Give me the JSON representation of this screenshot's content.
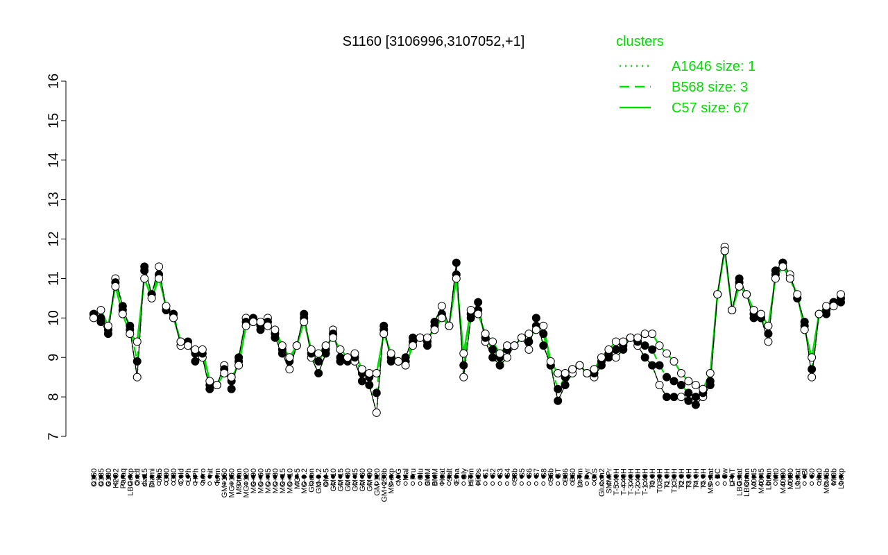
{
  "chart_data": {
    "type": "line",
    "title": "S1160 [3106996,3107052,+1]",
    "xlabel": "",
    "ylabel": "",
    "ylim": [
      7,
      16
    ],
    "yticks": [
      7,
      8,
      9,
      10,
      11,
      12,
      13,
      14,
      15,
      16
    ],
    "legend": {
      "title": "clusters",
      "placement": "top-right",
      "entries": [
        {
          "label": "A1646 size: 1",
          "style": "dotted"
        },
        {
          "label": "B568 size: 3",
          "style": "dashed"
        },
        {
          "label": "C57 size: 67",
          "style": "solid"
        }
      ]
    },
    "colors": {
      "line": "#00dd00",
      "axis": "#000000"
    },
    "x_tick_labels": [
      "G150",
      "G135",
      "G180",
      "H2O2",
      "Paraq",
      "LBGexp",
      "Oxctl",
      "dia15",
      "Diami",
      "dia5",
      "C90",
      "C30",
      "Cold",
      "LPh",
      "HPh",
      "aero",
      "nit",
      "ferm",
      "GM+150",
      "MG+150",
      "M9-tran",
      "MG+120",
      "MG+90",
      "MG+60",
      "MG+45",
      "MG+30",
      "MG+15",
      "MG+10",
      "MG+5",
      "MG-0.2",
      "Glucon",
      "GM-0.2",
      "GM-5",
      "GM-10",
      "GM-15",
      "GM-30",
      "GM-45",
      "GM-60",
      "GM-90",
      "GM-120",
      "GM+150b",
      "M9-exp",
      "M/G",
      "Mal",
      "Fru",
      "Glu",
      "SMM",
      "BMM",
      "Heat",
      "Salt",
      "Etha",
      "Gly",
      "HiTm",
      "HiOs",
      "S1",
      "S2",
      "S3",
      "S4",
      "S3b",
      "S5",
      "S6",
      "S7",
      "S8",
      "S6b",
      "BT",
      "B36",
      "B60",
      "LoTm",
      "Pyr",
      "G/S",
      "Glucon2",
      "SMMPr",
      "T-5.40H",
      "T-4.40H",
      "T-3.40H",
      "T-2.40H",
      "T-1.40H",
      "T0.0H",
      "T0.30H",
      "T1.0H",
      "T1.30H",
      "T2.0H",
      "T3.0H",
      "T4.0H",
      "T5.0H",
      "M9-stat",
      "BC",
      "Sw",
      "LPhT",
      "LBGstat",
      "LBGtran",
      "M0t45",
      "M40t45",
      "Lbtran",
      "Mt0",
      "M40t90",
      "M0t90",
      "Lbstat",
      "Bl",
      "S0",
      "dia0",
      "M0t45b",
      "Mt0b",
      "Lbexp"
    ],
    "series": [
      {
        "style": "solid",
        "values": [
          10.0,
          10.2,
          9.8,
          10.8,
          10.1,
          9.6,
          9.4,
          11.0,
          10.5,
          11.0,
          10.3,
          10.0,
          9.4,
          9.3,
          9.2,
          9.2,
          8.4,
          8.3,
          8.6,
          8.5,
          8.8,
          9.8,
          9.9,
          9.9,
          9.8,
          9.7,
          9.3,
          9.0,
          9.3,
          9.9,
          9.2,
          9.1,
          9.3,
          9.5,
          9.2,
          9.0,
          9.1,
          8.7,
          8.6,
          8.6,
          9.6,
          9.1,
          8.9,
          8.8,
          9.3,
          9.5,
          9.5,
          9.7,
          10.0,
          9.8,
          11.0,
          9.1,
          10.2,
          10.1,
          9.6,
          9.4,
          9.1,
          9.3,
          9.3,
          9.5,
          9.6,
          9.7,
          9.8,
          8.9,
          8.6,
          8.6,
          8.7,
          8.8,
          8.6,
          8.7,
          9.0,
          9.2,
          9.4,
          9.4,
          9.5,
          9.5,
          9.6,
          9.6,
          9.3,
          9.1,
          8.9,
          8.6,
          8.4,
          8.3,
          8.2,
          8.6,
          10.6,
          11.7,
          10.2,
          10.8,
          10.6,
          10.2,
          10.1,
          9.8,
          11.0,
          11.3,
          11.0,
          10.6,
          9.7,
          9.0,
          10.1,
          10.3,
          10.3,
          10.6
        ]
      },
      {
        "style": "dashed",
        "values": [
          10.1,
          10.0,
          9.7,
          10.9,
          10.2,
          9.8,
          8.9,
          11.2,
          10.6,
          11.1,
          10.2,
          10.1,
          9.4,
          9.4,
          9.1,
          9.1,
          8.3,
          8.3,
          8.7,
          8.4,
          8.9,
          9.9,
          9.9,
          9.8,
          9.9,
          9.6,
          9.2,
          8.9,
          9.3,
          10.0,
          9.1,
          8.9,
          9.2,
          9.6,
          9.0,
          9.0,
          9.0,
          8.6,
          8.5,
          8.1,
          9.7,
          9.0,
          8.9,
          8.9,
          9.4,
          9.5,
          9.4,
          9.8,
          10.1,
          9.8,
          11.1,
          8.8,
          10.1,
          10.2,
          9.5,
          9.2,
          9.0,
          9.2,
          9.3,
          9.5,
          9.4,
          9.8,
          9.6,
          8.8,
          8.2,
          8.5,
          8.7,
          8.8,
          8.6,
          8.6,
          8.9,
          9.1,
          9.2,
          9.3,
          9.5,
          9.4,
          9.3,
          9.2,
          8.8,
          8.5,
          8.4,
          8.3,
          8.1,
          8.0,
          8.1,
          8.4,
          10.6,
          11.7,
          10.2,
          10.9,
          10.6,
          10.1,
          10.0,
          9.6,
          11.1,
          11.4,
          11.0,
          10.5,
          9.8,
          8.7,
          10.1,
          10.2,
          10.4,
          10.5
        ]
      },
      {
        "style": "dotted",
        "values": [
          10.1,
          9.9,
          9.6,
          11.0,
          10.3,
          9.7,
          8.5,
          11.3,
          10.6,
          11.3,
          10.2,
          10.1,
          9.3,
          9.4,
          8.9,
          9.0,
          8.2,
          8.3,
          8.8,
          8.2,
          9.0,
          10.0,
          10.0,
          9.7,
          10.0,
          9.5,
          9.1,
          8.7,
          9.3,
          10.1,
          9.0,
          8.6,
          9.1,
          9.7,
          8.9,
          8.9,
          8.9,
          8.4,
          8.3,
          7.6,
          9.8,
          8.9,
          8.9,
          9.0,
          9.5,
          9.5,
          9.3,
          9.9,
          10.3,
          9.8,
          11.4,
          8.5,
          10.0,
          10.4,
          9.4,
          9.0,
          8.8,
          9.0,
          9.3,
          9.5,
          9.2,
          10.0,
          9.3,
          8.8,
          7.9,
          8.3,
          8.6,
          8.8,
          8.6,
          8.5,
          8.8,
          9.0,
          9.0,
          9.2,
          9.5,
          9.3,
          9.0,
          8.8,
          8.3,
          8.0,
          8.0,
          8.0,
          7.9,
          7.8,
          8.0,
          8.3,
          10.6,
          11.8,
          10.2,
          11.0,
          10.6,
          10.0,
          10.0,
          9.4,
          11.2,
          11.4,
          11.1,
          10.5,
          9.9,
          8.5,
          10.1,
          10.1,
          10.4,
          10.4
        ]
      }
    ]
  }
}
